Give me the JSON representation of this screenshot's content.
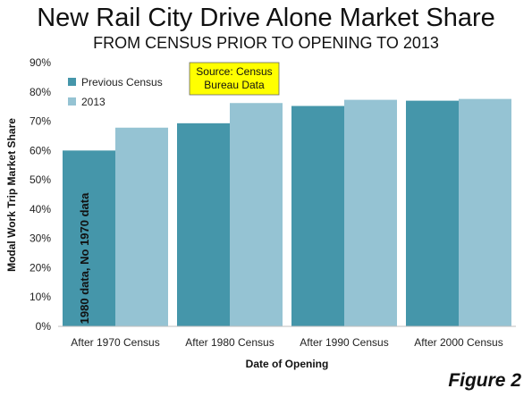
{
  "title": "New Rail City Drive Alone Market Share",
  "subtitle": "FROM CENSUS PRIOR TO OPENING TO 2013",
  "figure_label": "Figure 2",
  "colors": {
    "previous_census": "#4596aa",
    "y2013": "#95c3d3",
    "source_box": "#ffff00"
  },
  "chart_data": {
    "type": "bar",
    "categories": [
      "After 1970 Census",
      "After 1980 Census",
      "After 1990 Census",
      "After 2000 Census"
    ],
    "series": [
      {
        "name": "Previous Census",
        "values": [
          60,
          69.3,
          75.2,
          77
        ]
      },
      {
        "name": "2013",
        "values": [
          67.8,
          76.2,
          77.3,
          77.6
        ]
      }
    ],
    "xlabel": "Date of Opening",
    "ylabel": "Modal Work Trip Market Share",
    "ylim": [
      0,
      90
    ],
    "yticks": [
      "0%",
      "10%",
      "20%",
      "30%",
      "40%",
      "50%",
      "60%",
      "70%",
      "80%",
      "90%"
    ],
    "legend_position": "top-left",
    "grid": false,
    "annotations": {
      "source_line1": "Source: Census",
      "source_line2": "Bureau Data",
      "bar_note": "1980 data, No 1970 data"
    }
  }
}
